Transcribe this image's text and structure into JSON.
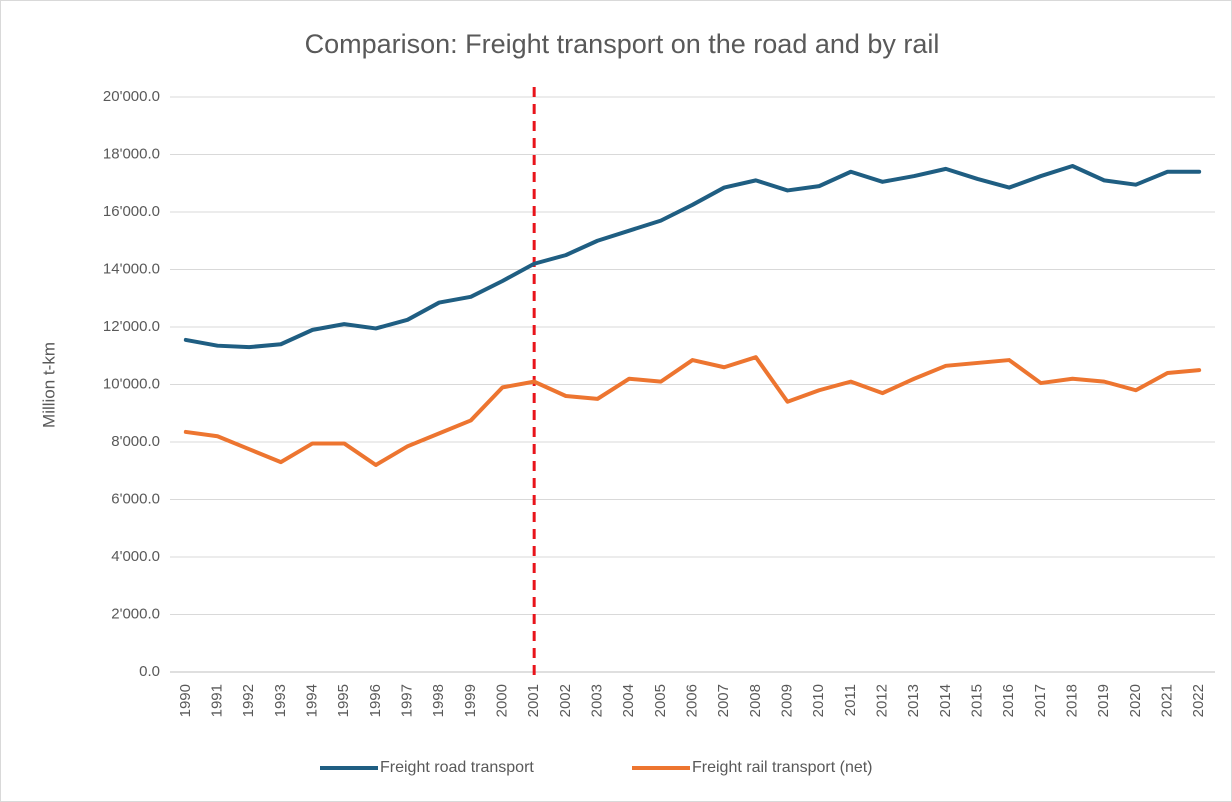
{
  "chart_data": {
    "type": "line",
    "title": "Comparison: Freight transport on the road and by rail",
    "y_axis_label": "Million t-km",
    "categories": [
      "1990",
      "1991",
      "1992",
      "1993",
      "1994",
      "1995",
      "1996",
      "1997",
      "1998",
      "1999",
      "2000",
      "2001",
      "2002",
      "2003",
      "2004",
      "2005",
      "2006",
      "2007",
      "2008",
      "2009",
      "2010",
      "2011",
      "2012",
      "2013",
      "2014",
      "2015",
      "2016",
      "2017",
      "2018",
      "2019",
      "2020",
      "2021",
      "2022"
    ],
    "series": [
      {
        "name": "Freight road transport",
        "color": "#1f5e82",
        "values": [
          11550,
          11350,
          11300,
          11400,
          11900,
          12100,
          11950,
          12250,
          12850,
          13050,
          13600,
          14200,
          14500,
          15000,
          15350,
          15700,
          16250,
          16850,
          17100,
          16750,
          16900,
          17400,
          17050,
          17250,
          17500,
          17150,
          16850,
          17250,
          17600,
          17100,
          16950,
          17400,
          17400
        ]
      },
      {
        "name": "Freight rail transport (net)",
        "color": "#ed7530",
        "values": [
          8350,
          8200,
          7750,
          7300,
          7950,
          7950,
          7200,
          7850,
          8300,
          8750,
          9900,
          10100,
          9600,
          9500,
          10200,
          10100,
          10850,
          10600,
          10950,
          9400,
          9800,
          10100,
          9700,
          10200,
          10650,
          10750,
          10850,
          10050,
          10200,
          10100,
          9800,
          10400,
          10500
        ]
      }
    ],
    "ylim": [
      0,
      20000
    ],
    "yticks": [
      {
        "value": 0,
        "label": "0.0"
      },
      {
        "value": 2000,
        "label": "2'000.0"
      },
      {
        "value": 4000,
        "label": "4'000.0"
      },
      {
        "value": 6000,
        "label": "6'000.0"
      },
      {
        "value": 8000,
        "label": "8'000.0"
      },
      {
        "value": 10000,
        "label": "10'000.0"
      },
      {
        "value": 12000,
        "label": "12'000.0"
      },
      {
        "value": 14000,
        "label": "14'000.0"
      },
      {
        "value": 16000,
        "label": "16'000.0"
      },
      {
        "value": 18000,
        "label": "18'000.0"
      },
      {
        "value": 20000,
        "label": "20'000.0"
      }
    ],
    "grid": true,
    "legend": "bottom",
    "vertical_line": {
      "category": "2001",
      "color": "#e8141b"
    }
  }
}
